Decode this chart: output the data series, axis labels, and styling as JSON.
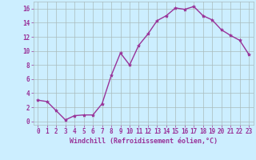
{
  "x": [
    0,
    1,
    2,
    3,
    4,
    5,
    6,
    7,
    8,
    9,
    10,
    11,
    12,
    13,
    14,
    15,
    16,
    17,
    18,
    19,
    20,
    21,
    22,
    23
  ],
  "y": [
    3.0,
    2.8,
    1.5,
    0.2,
    0.8,
    0.9,
    0.9,
    2.5,
    6.5,
    9.7,
    8.0,
    10.8,
    12.4,
    14.3,
    15.0,
    16.1,
    15.9,
    16.3,
    15.0,
    14.4,
    13.0,
    12.2,
    11.5,
    9.5
  ],
  "line_color": "#993399",
  "marker": "*",
  "marker_size": 3,
  "bg_color": "#cceeff",
  "grid_color": "#aabbbb",
  "xlabel": "Windchill (Refroidissement éolien,°C)",
  "xlabel_color": "#993399",
  "tick_color": "#993399",
  "ylim": [
    -0.5,
    17
  ],
  "yticks": [
    0,
    2,
    4,
    6,
    8,
    10,
    12,
    14,
    16
  ],
  "xticks": [
    0,
    1,
    2,
    3,
    4,
    5,
    6,
    7,
    8,
    9,
    10,
    11,
    12,
    13,
    14,
    15,
    16,
    17,
    18,
    19,
    20,
    21,
    22,
    23
  ],
  "xlim": [
    -0.5,
    23.5
  ],
  "tick_fontsize": 5.5,
  "xlabel_fontsize": 6.0,
  "linewidth": 1.0
}
